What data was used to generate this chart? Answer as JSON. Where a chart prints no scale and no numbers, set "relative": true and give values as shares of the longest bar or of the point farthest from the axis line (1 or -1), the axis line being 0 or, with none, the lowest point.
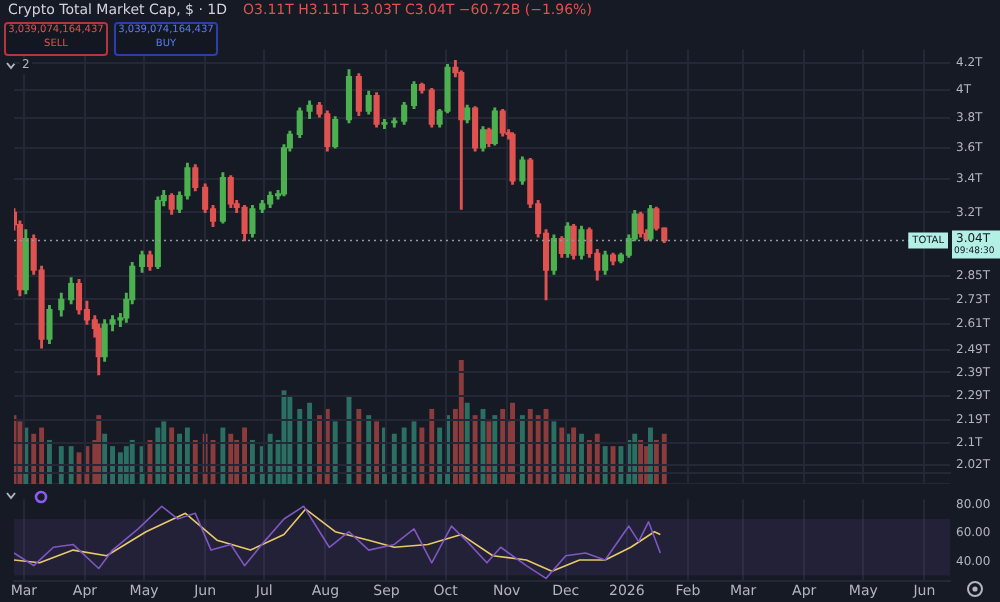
{
  "chart_data": [
    {
      "type": "candlestick",
      "title": "Crypto Total Market Cap, $ · 1D",
      "subtitle": "O3.11T H3.11T L3.03T C3.04T −60.72B (−1.96%)",
      "annotations": [
        "3,039,074,164,437",
        "SELL",
        "3,039,074,164,437",
        "BUY",
        "2",
        "3.04T",
        "09:48:30"
      ],
      "x": [
        "2025-02-24",
        "2025-02-27",
        "2025-03-02",
        "2025-03-06",
        "2025-03-10",
        "2025-03-14",
        "2025-03-20",
        "2025-03-25",
        "2025-03-29",
        "2025-04-02",
        "2025-04-06",
        "2025-04-08",
        "2025-04-11",
        "2025-04-15",
        "2025-04-19",
        "2025-04-22",
        "2025-04-25",
        "2025-04-30",
        "2025-05-04",
        "2025-05-08",
        "2025-05-11",
        "2025-05-15",
        "2025-05-19",
        "2025-05-23",
        "2025-05-27",
        "2025-06-01",
        "2025-06-05",
        "2025-06-10",
        "2025-06-14",
        "2025-06-17",
        "2025-06-21",
        "2025-06-25",
        "2025-06-30",
        "2025-07-04",
        "2025-07-08",
        "2025-07-11",
        "2025-07-14",
        "2025-07-19",
        "2025-07-24",
        "2025-07-29",
        "2025-08-02",
        "2025-08-06",
        "2025-08-13",
        "2025-08-18",
        "2025-08-23",
        "2025-08-27",
        "2025-08-31",
        "2025-09-05",
        "2025-09-10",
        "2025-09-15",
        "2025-09-19",
        "2025-09-24",
        "2025-09-28",
        "2025-10-02",
        "2025-10-06",
        "2025-10-09",
        "2025-10-12",
        "2025-10-16",
        "2025-10-20",
        "2025-10-23",
        "2025-10-26",
        "2025-10-30",
        "2025-11-02",
        "2025-11-04",
        "2025-11-09",
        "2025-11-13",
        "2025-11-17",
        "2025-11-21",
        "2025-11-25",
        "2025-11-29",
        "2025-12-02",
        "2025-12-05",
        "2025-12-09",
        "2025-12-13",
        "2025-12-17",
        "2025-12-21",
        "2025-12-25",
        "2025-12-29",
        "2026-01-02",
        "2026-01-05",
        "2026-01-08",
        "2026-01-11",
        "2026-01-13",
        "2026-01-16",
        "2026-01-20"
      ],
      "ohlc": [
        [
          3.2,
          3.22,
          3.1,
          3.13
        ],
        [
          3.13,
          3.15,
          2.75,
          2.78
        ],
        [
          2.78,
          3.1,
          2.76,
          3.05
        ],
        [
          3.05,
          3.07,
          2.86,
          2.88
        ],
        [
          2.88,
          2.9,
          2.5,
          2.54
        ],
        [
          2.54,
          2.7,
          2.52,
          2.68
        ],
        [
          2.68,
          2.76,
          2.65,
          2.73
        ],
        [
          2.73,
          2.84,
          2.71,
          2.81
        ],
        [
          2.81,
          2.83,
          2.66,
          2.68
        ],
        [
          2.68,
          2.72,
          2.61,
          2.63
        ],
        [
          2.63,
          2.65,
          2.55,
          2.59
        ],
        [
          2.59,
          2.61,
          2.38,
          2.46
        ],
        [
          2.46,
          2.63,
          2.44,
          2.61
        ],
        [
          2.61,
          2.65,
          2.58,
          2.63
        ],
        [
          2.63,
          2.66,
          2.6,
          2.64
        ],
        [
          2.64,
          2.76,
          2.62,
          2.73
        ],
        [
          2.73,
          2.92,
          2.71,
          2.9
        ],
        [
          2.9,
          2.98,
          2.87,
          2.96
        ],
        [
          2.96,
          2.98,
          2.88,
          2.9
        ],
        [
          2.9,
          3.29,
          2.89,
          3.27
        ],
        [
          3.27,
          3.33,
          3.24,
          3.3
        ],
        [
          3.3,
          3.31,
          3.19,
          3.22
        ],
        [
          3.22,
          3.32,
          3.2,
          3.3
        ],
        [
          3.3,
          3.5,
          3.28,
          3.47
        ],
        [
          3.47,
          3.49,
          3.33,
          3.35
        ],
        [
          3.35,
          3.37,
          3.2,
          3.22
        ],
        [
          3.22,
          3.24,
          3.12,
          3.15
        ],
        [
          3.15,
          3.44,
          3.14,
          3.41
        ],
        [
          3.41,
          3.42,
          3.23,
          3.25
        ],
        [
          3.25,
          3.27,
          3.2,
          3.23
        ],
        [
          3.23,
          3.24,
          3.04,
          3.08
        ],
        [
          3.08,
          3.24,
          3.06,
          3.22
        ],
        [
          3.22,
          3.27,
          3.2,
          3.25
        ],
        [
          3.25,
          3.32,
          3.23,
          3.3
        ],
        [
          3.3,
          3.33,
          3.28,
          3.31
        ],
        [
          3.31,
          3.62,
          3.3,
          3.6
        ],
        [
          3.6,
          3.71,
          3.58,
          3.69
        ],
        [
          3.69,
          3.87,
          3.67,
          3.85
        ],
        [
          3.85,
          3.92,
          3.8,
          3.89
        ],
        [
          3.89,
          3.91,
          3.81,
          3.83
        ],
        [
          3.83,
          3.85,
          3.58,
          3.61
        ],
        [
          3.61,
          3.81,
          3.6,
          3.79
        ],
        [
          3.79,
          4.15,
          3.77,
          4.1
        ],
        [
          4.1,
          4.12,
          3.82,
          3.85
        ],
        [
          3.85,
          3.99,
          3.83,
          3.96
        ],
        [
          3.96,
          3.98,
          3.74,
          3.76
        ],
        [
          3.76,
          3.79,
          3.73,
          3.77
        ],
        [
          3.77,
          3.8,
          3.74,
          3.78
        ],
        [
          3.78,
          3.91,
          3.76,
          3.89
        ],
        [
          3.89,
          4.06,
          3.87,
          4.04
        ],
        [
          4.04,
          4.05,
          3.98,
          4.0
        ],
        [
          4.0,
          4.01,
          3.74,
          3.76
        ],
        [
          3.76,
          3.86,
          3.74,
          3.85
        ],
        [
          3.85,
          4.19,
          3.84,
          4.17
        ],
        [
          4.17,
          4.22,
          4.1,
          4.13
        ],
        [
          4.13,
          4.14,
          3.22,
          3.79
        ],
        [
          3.79,
          3.89,
          3.77,
          3.87
        ],
        [
          3.87,
          3.88,
          3.58,
          3.6
        ],
        [
          3.6,
          3.74,
          3.58,
          3.72
        ],
        [
          3.72,
          3.73,
          3.61,
          3.63
        ],
        [
          3.63,
          3.87,
          3.62,
          3.85
        ],
        [
          3.85,
          3.86,
          3.68,
          3.7
        ],
        [
          3.7,
          3.72,
          3.66,
          3.69
        ],
        [
          3.69,
          3.7,
          3.37,
          3.39
        ],
        [
          3.39,
          3.54,
          3.37,
          3.52
        ],
        [
          3.52,
          3.53,
          3.23,
          3.25
        ],
        [
          3.25,
          3.27,
          3.06,
          3.08
        ],
        [
          3.08,
          3.1,
          2.73,
          2.88
        ],
        [
          2.88,
          3.07,
          2.86,
          3.05
        ],
        [
          3.05,
          3.06,
          2.95,
          2.97
        ],
        [
          2.97,
          3.14,
          2.95,
          3.12
        ],
        [
          3.12,
          3.13,
          2.94,
          2.96
        ],
        [
          2.96,
          3.12,
          2.94,
          3.1
        ],
        [
          3.1,
          3.11,
          2.95,
          2.97
        ],
        [
          2.97,
          2.99,
          2.83,
          2.88
        ],
        [
          2.88,
          2.98,
          2.86,
          2.96
        ],
        [
          2.96,
          2.97,
          2.91,
          2.93
        ],
        [
          2.93,
          2.97,
          2.92,
          2.96
        ],
        [
          2.96,
          3.07,
          2.95,
          3.05
        ],
        [
          3.05,
          3.21,
          3.04,
          3.19
        ],
        [
          3.19,
          3.2,
          3.06,
          3.08
        ],
        [
          3.08,
          3.1,
          3.04,
          3.05
        ],
        [
          3.05,
          3.24,
          3.04,
          3.22
        ],
        [
          3.22,
          3.23,
          3.1,
          3.11
        ],
        [
          3.11,
          3.11,
          3.03,
          3.04
        ]
      ],
      "log": true,
      "ylim": [
        1.99,
        4.31
      ],
      "yticks": [
        {
          "value": 2.02,
          "label": "2.02T"
        },
        {
          "value": 2.1,
          "label": "2.1T"
        },
        {
          "value": 2.19,
          "label": "2.19T"
        },
        {
          "value": 2.29,
          "label": "2.29T"
        },
        {
          "value": 2.39,
          "label": "2.39T"
        },
        {
          "value": 2.49,
          "label": "2.49T"
        },
        {
          "value": 2.61,
          "label": "2.61T"
        },
        {
          "value": 2.73,
          "label": "2.73T"
        },
        {
          "value": 2.85,
          "label": "2.85T"
        },
        {
          "value": 3.2,
          "label": "3.2T"
        },
        {
          "value": 3.4,
          "label": "3.4T"
        },
        {
          "value": 3.6,
          "label": "3.6T"
        },
        {
          "value": 3.8,
          "label": "3.8T"
        },
        {
          "value": 4,
          "label": "4T"
        },
        {
          "value": 4.2,
          "label": "4.2T"
        }
      ],
      "xlim": [
        "2025-02-24",
        "2026-06-14"
      ],
      "xticks": [
        {
          "value": "2025-03-01",
          "label": null
        },
        {
          "value": "2025-04-01",
          "label": null
        },
        {
          "value": "2025-05-01",
          "label": null
        },
        {
          "value": "2025-06-01",
          "label": null
        },
        {
          "value": "2025-07-01",
          "label": null
        },
        {
          "value": "2025-08-01",
          "label": null
        },
        {
          "value": "2025-09-01",
          "label": null
        },
        {
          "value": "2025-10-01",
          "label": null
        },
        {
          "value": "2025-11-01",
          "label": null
        },
        {
          "value": "2025-12-01",
          "label": null
        },
        {
          "value": "2026-01-01",
          "label": null
        },
        {
          "value": "2026-02-01",
          "label": null
        },
        {
          "value": "2026-03-01",
          "label": null
        },
        {
          "value": "2026-04-01",
          "label": null
        },
        {
          "value": "2026-05-01",
          "label": null
        },
        {
          "value": "2026-06-01",
          "label": null
        }
      ],
      "tick_labels": "y",
      "grid": true,
      "ref_lines": [
        {
          "axis": "y",
          "value": 3.04,
          "label": "TOTAL",
          "color": "#9598a1",
          "line_style": "dotted"
        }
      ]
    },
    {
      "type": "bar",
      "relative": true,
      "tick_labels": false,
      "x": [
        "2025-02-24",
        "2025-02-27",
        "2025-03-02",
        "2025-03-06",
        "2025-03-10",
        "2025-03-14",
        "2025-03-20",
        "2025-03-25",
        "2025-03-29",
        "2025-04-02",
        "2025-04-06",
        "2025-04-08",
        "2025-04-11",
        "2025-04-15",
        "2025-04-19",
        "2025-04-22",
        "2025-04-25",
        "2025-04-30",
        "2025-05-04",
        "2025-05-08",
        "2025-05-11",
        "2025-05-15",
        "2025-05-19",
        "2025-05-23",
        "2025-05-27",
        "2025-06-01",
        "2025-06-05",
        "2025-06-10",
        "2025-06-14",
        "2025-06-17",
        "2025-06-21",
        "2025-06-25",
        "2025-06-30",
        "2025-07-04",
        "2025-07-08",
        "2025-07-11",
        "2025-07-14",
        "2025-07-19",
        "2025-07-24",
        "2025-07-29",
        "2025-08-02",
        "2025-08-06",
        "2025-08-13",
        "2025-08-18",
        "2025-08-23",
        "2025-08-27",
        "2025-08-31",
        "2025-09-05",
        "2025-09-10",
        "2025-09-15",
        "2025-09-19",
        "2025-09-24",
        "2025-09-28",
        "2025-10-02",
        "2025-10-06",
        "2025-10-09",
        "2025-10-12",
        "2025-10-16",
        "2025-10-20",
        "2025-10-23",
        "2025-10-26",
        "2025-10-30",
        "2025-11-02",
        "2025-11-04",
        "2025-11-09",
        "2025-11-13",
        "2025-11-17",
        "2025-11-21",
        "2025-11-25",
        "2025-11-29",
        "2025-12-02",
        "2025-12-05",
        "2025-12-09",
        "2025-12-13",
        "2025-12-17",
        "2025-12-21",
        "2025-12-25",
        "2025-12-29",
        "2026-01-02",
        "2026-01-05",
        "2026-01-08",
        "2026-01-11",
        "2026-01-13",
        "2026-01-16",
        "2026-01-20"
      ],
      "values": [
        0.55,
        0.5,
        0.45,
        0.4,
        0.45,
        0.35,
        0.3,
        0.3,
        0.25,
        0.3,
        0.35,
        0.55,
        0.4,
        0.3,
        0.25,
        0.3,
        0.35,
        0.3,
        0.35,
        0.45,
        0.5,
        0.45,
        0.4,
        0.45,
        0.35,
        0.4,
        0.35,
        0.45,
        0.4,
        0.35,
        0.45,
        0.35,
        0.3,
        0.4,
        0.35,
        0.75,
        0.7,
        0.6,
        0.65,
        0.55,
        0.6,
        0.5,
        0.7,
        0.6,
        0.55,
        0.5,
        0.45,
        0.4,
        0.45,
        0.5,
        0.45,
        0.6,
        0.45,
        0.55,
        0.6,
        1,
        0.65,
        0.55,
        0.6,
        0.5,
        0.55,
        0.6,
        0.5,
        0.65,
        0.55,
        0.6,
        0.55,
        0.6,
        0.5,
        0.45,
        0.4,
        0.45,
        0.4,
        0.35,
        0.4,
        0.3,
        0.3,
        0.3,
        0.35,
        0.4,
        0.35,
        0.3,
        0.45,
        0.35,
        0.4
      ],
      "colors": [
        "#8a3b3b",
        "#8a3b3b",
        "#2b6e62",
        "#8a3b3b",
        "#8a3b3b",
        "#2b6e62",
        "#2b6e62",
        "#2b6e62",
        "#8a3b3b",
        "#8a3b3b",
        "#8a3b3b",
        "#8a3b3b",
        "#2b6e62",
        "#2b6e62",
        "#2b6e62",
        "#2b6e62",
        "#2b6e62",
        "#2b6e62",
        "#8a3b3b",
        "#2b6e62",
        "#2b6e62",
        "#8a3b3b",
        "#2b6e62",
        "#2b6e62",
        "#8a3b3b",
        "#8a3b3b",
        "#8a3b3b",
        "#2b6e62",
        "#8a3b3b",
        "#8a3b3b",
        "#8a3b3b",
        "#2b6e62",
        "#2b6e62",
        "#2b6e62",
        "#2b6e62",
        "#2b6e62",
        "#2b6e62",
        "#2b6e62",
        "#2b6e62",
        "#8a3b3b",
        "#8a3b3b",
        "#2b6e62",
        "#2b6e62",
        "#8a3b3b",
        "#2b6e62",
        "#8a3b3b",
        "#2b6e62",
        "#2b6e62",
        "#2b6e62",
        "#2b6e62",
        "#8a3b3b",
        "#8a3b3b",
        "#2b6e62",
        "#2b6e62",
        "#8a3b3b",
        "#8a3b3b",
        "#2b6e62",
        "#8a3b3b",
        "#2b6e62",
        "#8a3b3b",
        "#2b6e62",
        "#8a3b3b",
        "#8a3b3b",
        "#8a3b3b",
        "#2b6e62",
        "#8a3b3b",
        "#8a3b3b",
        "#8a3b3b",
        "#2b6e62",
        "#8a3b3b",
        "#2b6e62",
        "#8a3b3b",
        "#2b6e62",
        "#8a3b3b",
        "#8a3b3b",
        "#2b6e62",
        "#8a3b3b",
        "#2b6e62",
        "#2b6e62",
        "#2b6e62",
        "#8a3b3b",
        "#8a3b3b",
        "#2b6e62",
        "#8a3b3b",
        "#8a3b3b"
      ],
      "xlim": [
        "2025-02-24",
        "2026-06-14"
      ],
      "xticks": [
        {
          "value": "2025-03-01",
          "label": null
        },
        {
          "value": "2025-04-01",
          "label": null
        },
        {
          "value": "2025-05-01",
          "label": null
        },
        {
          "value": "2025-06-01",
          "label": null
        },
        {
          "value": "2025-07-01",
          "label": null
        },
        {
          "value": "2025-08-01",
          "label": null
        },
        {
          "value": "2025-09-01",
          "label": null
        },
        {
          "value": "2025-10-01",
          "label": null
        },
        {
          "value": "2025-11-01",
          "label": null
        },
        {
          "value": "2025-12-01",
          "label": null
        },
        {
          "value": "2026-01-01",
          "label": null
        },
        {
          "value": "2026-02-01",
          "label": null
        },
        {
          "value": "2026-03-01",
          "label": null
        },
        {
          "value": "2026-04-01",
          "label": null
        },
        {
          "value": "2026-05-01",
          "label": null
        },
        {
          "value": "2026-06-01",
          "label": null
        }
      ],
      "grid": "x"
    },
    {
      "type": "line",
      "ylim": [
        26,
        84
      ],
      "yticks": [
        {
          "value": 40,
          "label": "40.00"
        },
        {
          "value": 60,
          "label": "60.00"
        },
        {
          "value": 80,
          "label": "80.00"
        }
      ],
      "xlim": [
        "2025-02-24",
        "2026-06-14"
      ],
      "xticks": [
        {
          "value": "2025-03-01",
          "label": "Mar"
        },
        {
          "value": "2025-04-01",
          "label": "Apr"
        },
        {
          "value": "2025-05-01",
          "label": "May"
        },
        {
          "value": "2025-06-01",
          "label": "Jun"
        },
        {
          "value": "2025-07-01",
          "label": "Jul"
        },
        {
          "value": "2025-08-01",
          "label": "Aug"
        },
        {
          "value": "2025-09-01",
          "label": "Sep"
        },
        {
          "value": "2025-10-01",
          "label": "Oct"
        },
        {
          "value": "2025-11-01",
          "label": "Nov"
        },
        {
          "value": "2025-12-01",
          "label": "Dec"
        },
        {
          "value": "2026-01-01",
          "label": "2026"
        },
        {
          "value": "2026-02-01",
          "label": "Feb"
        },
        {
          "value": "2026-03-01",
          "label": "Mar"
        },
        {
          "value": "2026-04-01",
          "label": "Apr"
        },
        {
          "value": "2026-05-01",
          "label": "May"
        },
        {
          "value": "2026-06-01",
          "label": "Jun"
        }
      ],
      "grid": "x",
      "bands": [
        {
          "axis": "y",
          "from": 30,
          "to": 70,
          "color": "#7e57c2"
        }
      ],
      "series": [
        {
          "color": "#7e57c2",
          "x": [
            "2025-02-24",
            "2025-03-06",
            "2025-03-16",
            "2025-03-26",
            "2025-04-08",
            "2025-04-15",
            "2025-04-28",
            "2025-05-10",
            "2025-05-18",
            "2025-05-27",
            "2025-06-04",
            "2025-06-14",
            "2025-06-21",
            "2025-07-01",
            "2025-07-11",
            "2025-07-21",
            "2025-08-03",
            "2025-08-13",
            "2025-08-23",
            "2025-09-05",
            "2025-09-15",
            "2025-09-24",
            "2025-10-04",
            "2025-10-12",
            "2025-10-22",
            "2025-10-29",
            "2025-11-11",
            "2025-11-21",
            "2025-12-01",
            "2025-12-11",
            "2025-12-21",
            "2026-01-02",
            "2026-01-07",
            "2026-01-12",
            "2026-01-18"
          ],
          "values": [
            46,
            37,
            50,
            52,
            35,
            48,
            63,
            79,
            70,
            74,
            48,
            52,
            37,
            54,
            70,
            79,
            50,
            61,
            48,
            52,
            63,
            39,
            65,
            54,
            39,
            50,
            37,
            28,
            44,
            46,
            41,
            65,
            54,
            68,
            46
          ]
        },
        {
          "color": "#e8c96a",
          "x": [
            "2025-02-24",
            "2025-03-09",
            "2025-03-26",
            "2025-04-12",
            "2025-05-02",
            "2025-05-22",
            "2025-06-07",
            "2025-06-24",
            "2025-07-11",
            "2025-07-22",
            "2025-08-06",
            "2025-08-23",
            "2025-09-05",
            "2025-09-22",
            "2025-10-09",
            "2025-10-25",
            "2025-11-11",
            "2025-11-24",
            "2025-12-08",
            "2025-12-21",
            "2026-01-03",
            "2026-01-15",
            "2026-01-18"
          ],
          "values": [
            41,
            39,
            48,
            44,
            61,
            74,
            55,
            48,
            59,
            77,
            61,
            55,
            50,
            52,
            59,
            44,
            41,
            33,
            41,
            41,
            50,
            61,
            59
          ]
        }
      ]
    }
  ]
}
